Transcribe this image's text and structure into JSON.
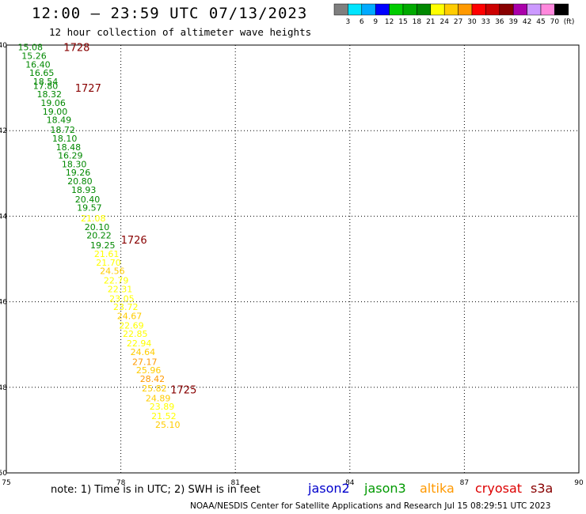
{
  "header": {
    "title": "12:00 – 23:59 UTC 07/13/2023",
    "subtitle": "12 hour collection of altimeter wave heights"
  },
  "footer": {
    "note": "note:  1) Time is in UTC;  2) SWH is in feet",
    "credit": "NOAA/NESDIS Center for Satellite Applications and Research    Jul 15 08:29:51 UTC 2023",
    "satellites": [
      {
        "label": "jason2",
        "color": "#0000cc"
      },
      {
        "label": "jason3",
        "color": "#009900"
      },
      {
        "label": "altika",
        "color": "#ff9900"
      },
      {
        "label": "cryosat",
        "color": "#dd0000"
      },
      {
        "label": "s3a",
        "color": "#880000"
      }
    ]
  },
  "colorbar": {
    "colors": [
      "#7f7f7f",
      "#00e5ff",
      "#00aaff",
      "#0000ff",
      "#00cc00",
      "#00aa00",
      "#008800",
      "#ffff00",
      "#ffcc00",
      "#ff9900",
      "#ff0000",
      "#cc0000",
      "#880000",
      "#aa00aa",
      "#cc99ff",
      "#ff88dd",
      "#000000"
    ],
    "labels": [
      "3",
      "6",
      "9",
      "12",
      "15",
      "18",
      "21",
      "24",
      "27",
      "30",
      "33",
      "36",
      "39",
      "42",
      "45",
      "70"
    ],
    "unit": "(ft)"
  },
  "chart_data": {
    "type": "scatter",
    "xlim": [
      75,
      90
    ],
    "ylim": [
      -50,
      -40
    ],
    "x_ticks": [
      75,
      78,
      81,
      84,
      87,
      90
    ],
    "y_ticks": [
      -40,
      -42,
      -44,
      -46,
      -48,
      -50
    ],
    "grid": true,
    "times": [
      {
        "label": "1728",
        "lon": 76.5,
        "lat": -40.05
      },
      {
        "label": "1727",
        "lon": 76.8,
        "lat": -41.0
      },
      {
        "label": "1726",
        "lon": 78.0,
        "lat": -44.55
      },
      {
        "label": "1725",
        "lon": 79.3,
        "lat": -48.05
      }
    ],
    "points": [
      {
        "lon": 75.3,
        "lat": -40.05,
        "swh": "15.08"
      },
      {
        "lon": 75.4,
        "lat": -40.25,
        "swh": "15.26"
      },
      {
        "lon": 75.5,
        "lat": -40.45,
        "swh": "16.40"
      },
      {
        "lon": 75.6,
        "lat": -40.65,
        "swh": "16.65"
      },
      {
        "lon": 75.7,
        "lat": -40.85,
        "swh": "18.54"
      },
      {
        "lon": 75.7,
        "lat": -40.95,
        "swh": "17.80"
      },
      {
        "lon": 75.8,
        "lat": -41.15,
        "swh": "18.32"
      },
      {
        "lon": 75.9,
        "lat": -41.35,
        "swh": "19.06"
      },
      {
        "lon": 75.95,
        "lat": -41.55,
        "swh": "19.00"
      },
      {
        "lon": 76.05,
        "lat": -41.75,
        "swh": "18.49"
      },
      {
        "lon": 76.15,
        "lat": -41.98,
        "swh": "18.72"
      },
      {
        "lon": 76.2,
        "lat": -42.18,
        "swh": "18.10"
      },
      {
        "lon": 76.3,
        "lat": -42.38,
        "swh": "18.48"
      },
      {
        "lon": 76.35,
        "lat": -42.58,
        "swh": "16.29"
      },
      {
        "lon": 76.45,
        "lat": -42.78,
        "swh": "18.30"
      },
      {
        "lon": 76.55,
        "lat": -42.98,
        "swh": "19.26"
      },
      {
        "lon": 76.6,
        "lat": -43.18,
        "swh": "20.80"
      },
      {
        "lon": 76.7,
        "lat": -43.38,
        "swh": "18.93"
      },
      {
        "lon": 76.8,
        "lat": -43.6,
        "swh": "20.40"
      },
      {
        "lon": 76.85,
        "lat": -43.8,
        "swh": "19.57"
      },
      {
        "lon": 76.95,
        "lat": -44.05,
        "swh": "21.08"
      },
      {
        "lon": 77.05,
        "lat": -44.25,
        "swh": "20.10"
      },
      {
        "lon": 77.1,
        "lat": -44.45,
        "swh": "20.22"
      },
      {
        "lon": 77.2,
        "lat": -44.68,
        "swh": "19.25"
      },
      {
        "lon": 77.3,
        "lat": -44.88,
        "swh": "21.61"
      },
      {
        "lon": 77.35,
        "lat": -45.08,
        "swh": "21.70"
      },
      {
        "lon": 77.45,
        "lat": -45.28,
        "swh": "24.56"
      },
      {
        "lon": 77.55,
        "lat": -45.5,
        "swh": "22.79"
      },
      {
        "lon": 77.65,
        "lat": -45.7,
        "swh": "22.31"
      },
      {
        "lon": 77.7,
        "lat": -45.92,
        "swh": "23.05"
      },
      {
        "lon": 77.8,
        "lat": -46.12,
        "swh": "23.72"
      },
      {
        "lon": 77.9,
        "lat": -46.33,
        "swh": "24.67"
      },
      {
        "lon": 77.95,
        "lat": -46.55,
        "swh": "22.69"
      },
      {
        "lon": 78.05,
        "lat": -46.75,
        "swh": "22.85"
      },
      {
        "lon": 78.15,
        "lat": -46.97,
        "swh": "22.94"
      },
      {
        "lon": 78.25,
        "lat": -47.17,
        "swh": "24.64"
      },
      {
        "lon": 78.3,
        "lat": -47.4,
        "swh": "27.17"
      },
      {
        "lon": 78.4,
        "lat": -47.6,
        "swh": "25.96"
      },
      {
        "lon": 78.5,
        "lat": -47.8,
        "swh": "28.42"
      },
      {
        "lon": 78.55,
        "lat": -48.02,
        "swh": "25.82"
      },
      {
        "lon": 78.65,
        "lat": -48.25,
        "swh": "24.89"
      },
      {
        "lon": 78.75,
        "lat": -48.45,
        "swh": "23.89"
      },
      {
        "lon": 78.8,
        "lat": -48.67,
        "swh": "21.52"
      },
      {
        "lon": 78.9,
        "lat": -48.87,
        "swh": "25.10"
      }
    ]
  }
}
